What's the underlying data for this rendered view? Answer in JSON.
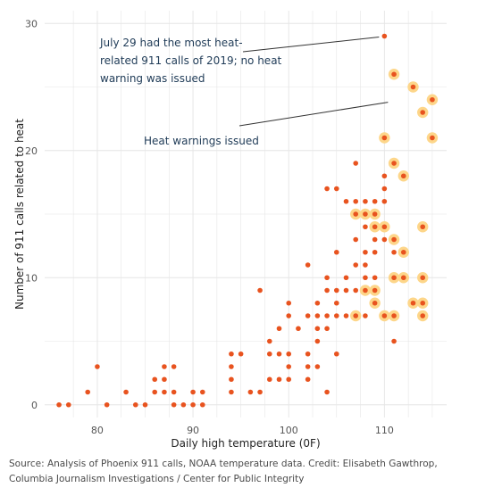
{
  "chart_data": {
    "type": "scatter",
    "xlabel": "Daily high temperature (0F)",
    "ylabel": "Number of 911 calls related to heat",
    "xlim": [
      74.5,
      116.5
    ],
    "ylim": [
      -1,
      31
    ],
    "x_ticks": [
      80,
      90,
      100,
      110
    ],
    "y_ticks": [
      0,
      10,
      20,
      30
    ],
    "grid": true,
    "series": [
      {
        "style": "orange-dot",
        "points": [
          {
            "x": 76,
            "y": 0
          },
          {
            "x": 77,
            "y": 0
          },
          {
            "x": 79,
            "y": 1
          },
          {
            "x": 80,
            "y": 3
          },
          {
            "x": 81,
            "y": 0
          },
          {
            "x": 83,
            "y": 1
          },
          {
            "x": 84,
            "y": 0
          },
          {
            "x": 85,
            "y": 0
          },
          {
            "x": 86,
            "y": 1
          },
          {
            "x": 86,
            "y": 2
          },
          {
            "x": 87,
            "y": 1
          },
          {
            "x": 87,
            "y": 2
          },
          {
            "x": 87,
            "y": 3
          },
          {
            "x": 88,
            "y": 0
          },
          {
            "x": 88,
            "y": 1
          },
          {
            "x": 88,
            "y": 3
          },
          {
            "x": 89,
            "y": 0
          },
          {
            "x": 90,
            "y": 0
          },
          {
            "x": 90,
            "y": 1
          },
          {
            "x": 91,
            "y": 0
          },
          {
            "x": 91,
            "y": 1
          },
          {
            "x": 94,
            "y": 1
          },
          {
            "x": 94,
            "y": 2
          },
          {
            "x": 94,
            "y": 3
          },
          {
            "x": 94,
            "y": 4
          },
          {
            "x": 95,
            "y": 4
          },
          {
            "x": 96,
            "y": 1
          },
          {
            "x": 97,
            "y": 1
          },
          {
            "x": 97,
            "y": 9
          },
          {
            "x": 98,
            "y": 2
          },
          {
            "x": 98,
            "y": 4
          },
          {
            "x": 98,
            "y": 5
          },
          {
            "x": 99,
            "y": 2
          },
          {
            "x": 99,
            "y": 4
          },
          {
            "x": 99,
            "y": 6
          },
          {
            "x": 100,
            "y": 2
          },
          {
            "x": 100,
            "y": 3
          },
          {
            "x": 100,
            "y": 4
          },
          {
            "x": 100,
            "y": 7
          },
          {
            "x": 100,
            "y": 8
          },
          {
            "x": 101,
            "y": 6
          },
          {
            "x": 102,
            "y": 2
          },
          {
            "x": 102,
            "y": 3
          },
          {
            "x": 102,
            "y": 4
          },
          {
            "x": 102,
            "y": 7
          },
          {
            "x": 102,
            "y": 11
          },
          {
            "x": 103,
            "y": 3
          },
          {
            "x": 103,
            "y": 5
          },
          {
            "x": 103,
            "y": 6
          },
          {
            "x": 103,
            "y": 7
          },
          {
            "x": 103,
            "y": 8
          },
          {
            "x": 104,
            "y": 1
          },
          {
            "x": 104,
            "y": 6
          },
          {
            "x": 104,
            "y": 7
          },
          {
            "x": 104,
            "y": 9
          },
          {
            "x": 104,
            "y": 10
          },
          {
            "x": 104,
            "y": 17
          },
          {
            "x": 105,
            "y": 4
          },
          {
            "x": 105,
            "y": 7
          },
          {
            "x": 105,
            "y": 8
          },
          {
            "x": 105,
            "y": 9
          },
          {
            "x": 105,
            "y": 12
          },
          {
            "x": 105,
            "y": 17
          },
          {
            "x": 106,
            "y": 7
          },
          {
            "x": 106,
            "y": 9
          },
          {
            "x": 106,
            "y": 10
          },
          {
            "x": 106,
            "y": 16
          },
          {
            "x": 107,
            "y": 9
          },
          {
            "x": 107,
            "y": 11
          },
          {
            "x": 107,
            "y": 13
          },
          {
            "x": 107,
            "y": 16
          },
          {
            "x": 107,
            "y": 19
          },
          {
            "x": 108,
            "y": 7
          },
          {
            "x": 108,
            "y": 10
          },
          {
            "x": 108,
            "y": 11
          },
          {
            "x": 108,
            "y": 12
          },
          {
            "x": 108,
            "y": 14
          },
          {
            "x": 108,
            "y": 16
          },
          {
            "x": 109,
            "y": 10
          },
          {
            "x": 109,
            "y": 12
          },
          {
            "x": 109,
            "y": 13
          },
          {
            "x": 109,
            "y": 16
          },
          {
            "x": 110,
            "y": 13
          },
          {
            "x": 110,
            "y": 16
          },
          {
            "x": 110,
            "y": 17
          },
          {
            "x": 110,
            "y": 18
          },
          {
            "x": 110,
            "y": 29
          },
          {
            "x": 111,
            "y": 5
          },
          {
            "x": 111,
            "y": 12
          }
        ]
      },
      {
        "name": "Heat warnings issued",
        "style": "orange-dot-with-yellow-halo",
        "points": [
          {
            "x": 107,
            "y": 7
          },
          {
            "x": 107,
            "y": 15
          },
          {
            "x": 108,
            "y": 9
          },
          {
            "x": 108,
            "y": 15
          },
          {
            "x": 109,
            "y": 8
          },
          {
            "x": 109,
            "y": 9
          },
          {
            "x": 109,
            "y": 14
          },
          {
            "x": 109,
            "y": 15
          },
          {
            "x": 110,
            "y": 7
          },
          {
            "x": 110,
            "y": 14
          },
          {
            "x": 110,
            "y": 21
          },
          {
            "x": 111,
            "y": 7
          },
          {
            "x": 111,
            "y": 10
          },
          {
            "x": 111,
            "y": 13
          },
          {
            "x": 111,
            "y": 19
          },
          {
            "x": 111,
            "y": 26
          },
          {
            "x": 112,
            "y": 10
          },
          {
            "x": 112,
            "y": 12
          },
          {
            "x": 112,
            "y": 18
          },
          {
            "x": 113,
            "y": 8
          },
          {
            "x": 113,
            "y": 25
          },
          {
            "x": 114,
            "y": 7
          },
          {
            "x": 114,
            "y": 8
          },
          {
            "x": 114,
            "y": 10
          },
          {
            "x": 114,
            "y": 14
          },
          {
            "x": 114,
            "y": 23
          },
          {
            "x": 115,
            "y": 21
          },
          {
            "x": 115,
            "y": 24
          }
        ]
      }
    ],
    "annotations": [
      {
        "lines": [
          "July 29 had the most heat-",
          "related 911 calls of 2019; no heat",
          "warning was issued"
        ],
        "target": {
          "x": 110,
          "y": 29
        }
      },
      {
        "lines": [
          "Heat warnings issued"
        ],
        "target": {
          "x": 110,
          "y": 23.8
        }
      }
    ]
  },
  "colors": {
    "dot": "#e8531f",
    "halo": "#fdd68a",
    "grid": "#e6e6e6",
    "annotation_text": "#1f3b57",
    "leader_line": "#333333"
  },
  "source": "Source: Analysis of Phoenix 911 calls, NOAA temperature data. Credit: Elisabeth Gawthrop, Columbia Journalism Investigations / Center for Public Integrity"
}
